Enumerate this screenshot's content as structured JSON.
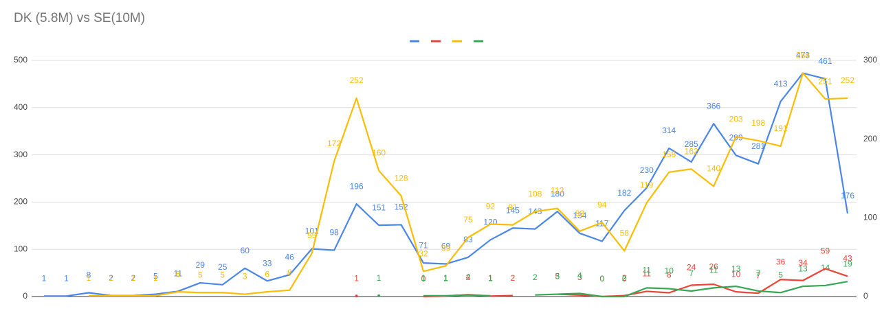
{
  "chart_data": {
    "type": "line",
    "title": "DK (5.8M) vs SE(10M)",
    "legend": "top",
    "grid": true,
    "data_labels": true,
    "ylim": [
      0,
      500
    ],
    "yticks": [
      0,
      100,
      200,
      300,
      400,
      500
    ],
    "y2lim": [
      0,
      300
    ],
    "y2ticks": [
      0,
      100,
      200,
      300
    ],
    "series": [
      {
        "color": "#4a86e8",
        "values": [
          1,
          1,
          8,
          2,
          2,
          5,
          11,
          29,
          25,
          60,
          33,
          46,
          101,
          98,
          196,
          151,
          152,
          71,
          69,
          83,
          120,
          145,
          143,
          180,
          134,
          117,
          182,
          230,
          314,
          285,
          366,
          299,
          281,
          413,
          473,
          461,
          176
        ]
      },
      {
        "color": "#ea4335",
        "values": [
          null,
          null,
          null,
          null,
          null,
          null,
          null,
          null,
          null,
          null,
          null,
          null,
          null,
          null,
          1,
          null,
          null,
          0,
          1,
          4,
          1,
          2,
          null,
          5,
          3,
          0,
          2,
          11,
          8,
          24,
          26,
          10,
          7,
          36,
          34,
          59,
          43
        ]
      },
      {
        "color": "#fbbc04",
        "axis": "y2",
        "values": [
          null,
          null,
          1,
          1,
          1,
          1,
          6,
          5,
          5,
          3,
          6,
          8,
          55,
          172,
          252,
          160,
          128,
          32,
          39,
          75,
          92,
          91,
          108,
          112,
          83,
          94,
          58,
          119,
          158,
          162,
          140,
          203,
          198,
          191,
          284,
          251,
          252
        ]
      },
      {
        "color": "#34a853",
        "axis": "y2",
        "values": [
          null,
          null,
          null,
          null,
          null,
          null,
          null,
          null,
          null,
          null,
          null,
          null,
          null,
          null,
          null,
          1,
          null,
          1,
          1,
          2,
          1,
          null,
          2,
          3,
          4,
          0,
          0,
          11,
          10,
          7,
          11,
          13,
          7,
          5,
          13,
          14,
          19
        ]
      }
    ]
  }
}
